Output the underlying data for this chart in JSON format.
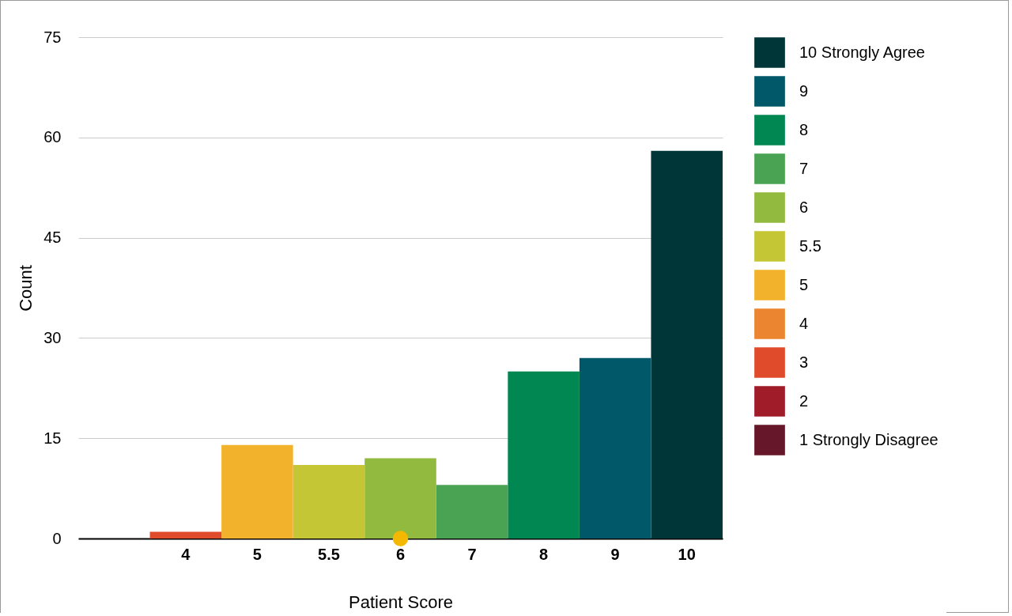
{
  "chart_data": {
    "type": "bar",
    "xlabel": "Patient Score",
    "ylabel": "Count",
    "categories": [
      null,
      "4",
      "5",
      "5.5",
      "6",
      "7",
      "8",
      "9",
      "10"
    ],
    "series": [
      {
        "name": "10 Strongly Agree",
        "color": "#003638",
        "values": [
          null,
          null,
          null,
          null,
          null,
          null,
          null,
          null,
          58
        ]
      },
      {
        "name": "9",
        "color": "#005869",
        "values": [
          null,
          null,
          null,
          null,
          null,
          null,
          null,
          27,
          null
        ]
      },
      {
        "name": "8",
        "color": "#008752",
        "values": [
          null,
          null,
          null,
          null,
          null,
          null,
          25,
          null,
          null
        ]
      },
      {
        "name": "7",
        "color": "#4aa352",
        "values": [
          null,
          null,
          null,
          null,
          null,
          8,
          null,
          null,
          null
        ]
      },
      {
        "name": "6",
        "color": "#91ba3e",
        "values": [
          null,
          null,
          null,
          null,
          12,
          null,
          null,
          null,
          null
        ]
      },
      {
        "name": "5.5",
        "color": "#c4c635",
        "values": [
          null,
          null,
          null,
          11,
          null,
          null,
          null,
          null,
          null
        ]
      },
      {
        "name": "5",
        "color": "#f3b22b",
        "values": [
          null,
          null,
          14,
          null,
          null,
          null,
          null,
          null,
          null
        ]
      },
      {
        "name": "4",
        "color": "#ec8530",
        "values": [
          null,
          null,
          null,
          null,
          null,
          null,
          null,
          null,
          null
        ]
      },
      {
        "name": "3",
        "color": "#e04b2c",
        "values": [
          null,
          1,
          null,
          null,
          null,
          null,
          null,
          null,
          null
        ]
      },
      {
        "name": "2",
        "color": "#a01c29",
        "values": [
          null,
          null,
          null,
          null,
          null,
          null,
          null,
          null,
          null
        ]
      },
      {
        "name": "1 Strongly Disagree",
        "color": "#66182a",
        "values": [
          null,
          null,
          null,
          null,
          null,
          null,
          null,
          null,
          null
        ]
      },
      {
        "type": "scatter",
        "color": "#f5b800",
        "x": [
          "6"
        ],
        "values": [
          0
        ]
      }
    ],
    "ylim": [
      0,
      75
    ],
    "yticks": [
      0,
      15,
      30,
      45,
      60,
      75
    ],
    "grid": "y",
    "legend": "right",
    "marker": "circle"
  }
}
